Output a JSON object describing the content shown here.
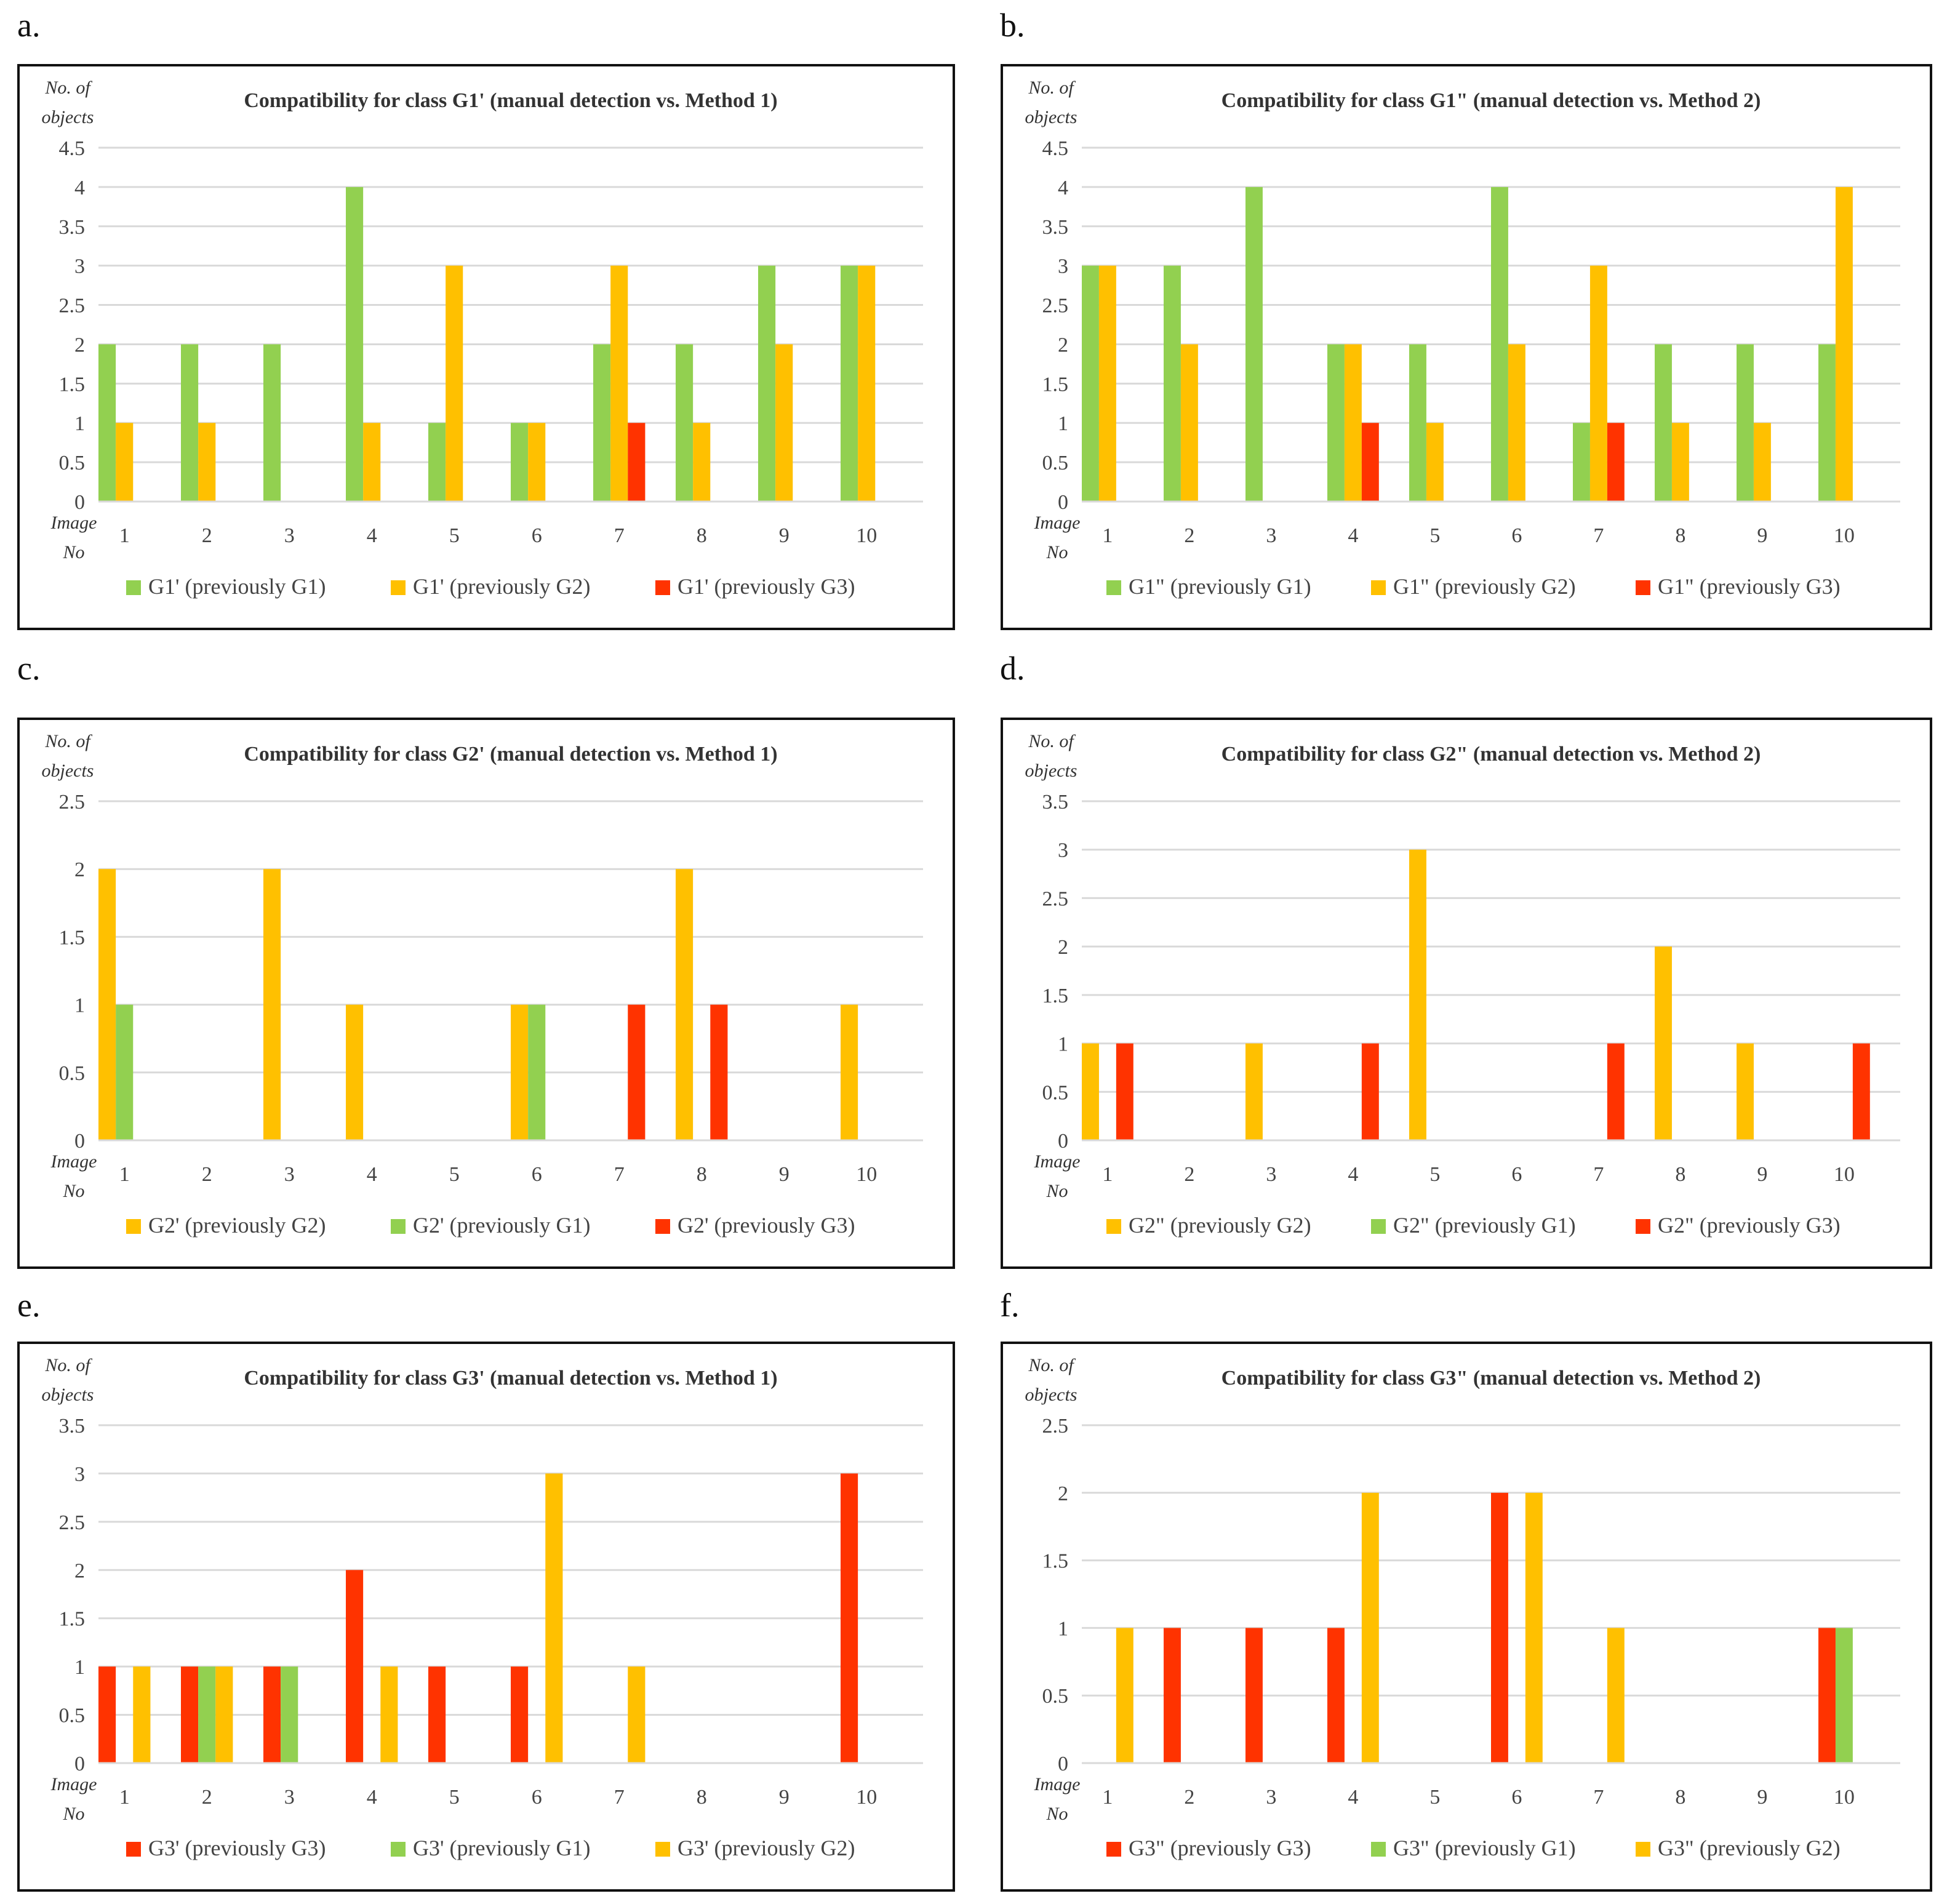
{
  "colors": {
    "green": "#92D050",
    "orange": "#FFC000",
    "red": "#FF3300",
    "grid": "#D9D9D9"
  },
  "axis_labels": {
    "y_line1": "No. of",
    "y_line2": "objects",
    "x_line1": "Image",
    "x_line2": "No"
  },
  "chart_data": [
    {
      "panel": "a.",
      "type": "bar",
      "title": "Compatibility for class G1' (manual detection vs. Method 1)",
      "ylabel": "No. of objects",
      "xlabel": "Image No",
      "ylim": [
        0,
        4.5
      ],
      "ystep": 0.5,
      "yticks": [
        "0",
        "0.5",
        "1",
        "1.5",
        "2",
        "2.5",
        "3",
        "3.5",
        "4",
        "4.5"
      ],
      "categories": [
        "1",
        "2",
        "3",
        "4",
        "5",
        "6",
        "7",
        "8",
        "9",
        "10"
      ],
      "legend_position": "bottom",
      "series": [
        {
          "name": "G1' (previously G1)",
          "color": "green",
          "values": [
            2,
            2,
            2,
            4,
            1,
            1,
            2,
            2,
            3,
            3
          ]
        },
        {
          "name": "G1' (previously G2)",
          "color": "orange",
          "values": [
            1,
            1,
            0,
            1,
            3,
            1,
            3,
            1,
            2,
            3
          ]
        },
        {
          "name": "G1' (previously G3)",
          "color": "red",
          "values": [
            0,
            0,
            0,
            0,
            0,
            0,
            1,
            0,
            0,
            0
          ]
        }
      ]
    },
    {
      "panel": "b.",
      "type": "bar",
      "title": "Compatibility for class G1\" (manual detection vs. Method 2)",
      "ylabel": "No. of objects",
      "xlabel": "Image No",
      "ylim": [
        0,
        4.5
      ],
      "ystep": 0.5,
      "yticks": [
        "0",
        "0.5",
        "1",
        "1.5",
        "2",
        "2.5",
        "3",
        "3.5",
        "4",
        "4.5"
      ],
      "categories": [
        "1",
        "2",
        "3",
        "4",
        "5",
        "6",
        "7",
        "8",
        "9",
        "10"
      ],
      "legend_position": "bottom",
      "series": [
        {
          "name": "G1\" (previously G1)",
          "color": "green",
          "values": [
            3,
            3,
            4,
            2,
            2,
            4,
            1,
            2,
            2,
            2
          ]
        },
        {
          "name": "G1\" (previously G2)",
          "color": "orange",
          "values": [
            3,
            2,
            0,
            2,
            1,
            2,
            3,
            1,
            1,
            4
          ]
        },
        {
          "name": "G1\" (previously G3)",
          "color": "red",
          "values": [
            0,
            0,
            0,
            1,
            0,
            0,
            1,
            0,
            0,
            0
          ]
        }
      ]
    },
    {
      "panel": "c.",
      "type": "bar",
      "title": "Compatibility for class G2' (manual detection vs. Method 1)",
      "ylabel": "No. of objects",
      "xlabel": "Image No",
      "ylim": [
        0,
        2.5
      ],
      "ystep": 0.5,
      "yticks": [
        "0",
        "0.5",
        "1",
        "1.5",
        "2",
        "2.5"
      ],
      "categories": [
        "1",
        "2",
        "3",
        "4",
        "5",
        "6",
        "7",
        "8",
        "9",
        "10"
      ],
      "legend_position": "bottom",
      "series": [
        {
          "name": "G2' (previously G2)",
          "color": "orange",
          "values": [
            2,
            0,
            2,
            1,
            0,
            1,
            0,
            2,
            0,
            1
          ]
        },
        {
          "name": "G2' (previously G1)",
          "color": "green",
          "values": [
            1,
            0,
            0,
            0,
            0,
            1,
            0,
            0,
            0,
            0
          ]
        },
        {
          "name": "G2' (previously G3)",
          "color": "red",
          "values": [
            0,
            0,
            0,
            0,
            0,
            0,
            1,
            1,
            0,
            0
          ]
        }
      ],
      "bar_slots": [
        0,
        1,
        2
      ]
    },
    {
      "panel": "d.",
      "type": "bar",
      "title": "Compatibility for class G2\" (manual detection vs. Method 2)",
      "ylabel": "No. of objects",
      "xlabel": "Image No",
      "ylim": [
        0,
        3.5
      ],
      "ystep": 0.5,
      "yticks": [
        "0",
        "0.5",
        "1",
        "1.5",
        "2",
        "2.5",
        "3",
        "3.5"
      ],
      "categories": [
        "1",
        "2",
        "3",
        "4",
        "5",
        "6",
        "7",
        "8",
        "9",
        "10"
      ],
      "legend_position": "bottom",
      "series": [
        {
          "name": "G2\" (previously G2)",
          "color": "orange",
          "values": [
            1,
            0,
            1,
            0,
            3,
            0,
            0,
            2,
            1,
            0
          ]
        },
        {
          "name": "G2\" (previously G1)",
          "color": "green",
          "values": [
            0,
            0,
            0,
            0,
            0,
            0,
            0,
            0,
            0,
            0
          ]
        },
        {
          "name": "G2\" (previously G3)",
          "color": "red",
          "values": [
            1,
            0,
            0,
            1,
            0,
            0,
            1,
            0,
            0,
            1
          ]
        }
      ]
    },
    {
      "panel": "e.",
      "type": "bar",
      "title": "Compatibility for class G3' (manual detection vs. Method 1)",
      "ylabel": "No. of objects",
      "xlabel": "Image No",
      "ylim": [
        0,
        3.5
      ],
      "ystep": 0.5,
      "yticks": [
        "0",
        "0.5",
        "1",
        "1.5",
        "2",
        "2.5",
        "3",
        "3.5"
      ],
      "categories": [
        "1",
        "2",
        "3",
        "4",
        "5",
        "6",
        "7",
        "8",
        "9",
        "10"
      ],
      "legend_position": "bottom",
      "series": [
        {
          "name": "G3' (previously G3)",
          "color": "red",
          "values": [
            1,
            1,
            1,
            2,
            1,
            1,
            0,
            0,
            0,
            3
          ]
        },
        {
          "name": "G3' (previously G1)",
          "color": "green",
          "values": [
            0,
            1,
            1,
            0,
            0,
            0,
            0,
            0,
            0,
            0
          ]
        },
        {
          "name": "G3' (previously G2)",
          "color": "orange",
          "values": [
            1,
            1,
            0,
            1,
            0,
            3,
            1,
            0,
            0,
            0
          ]
        }
      ]
    },
    {
      "panel": "f.",
      "type": "bar",
      "title": "Compatibility for class G3\" (manual detection vs. Method 2)",
      "ylabel": "No. of objects",
      "xlabel": "Image No",
      "ylim": [
        0,
        2.5
      ],
      "ystep": 0.5,
      "yticks": [
        "0",
        "0.5",
        "1",
        "1.5",
        "2",
        "2.5"
      ],
      "categories": [
        "1",
        "2",
        "3",
        "4",
        "5",
        "6",
        "7",
        "8",
        "9",
        "10"
      ],
      "legend_position": "bottom",
      "series": [
        {
          "name": "G3\" (previously G3)",
          "color": "red",
          "values": [
            0,
            1,
            1,
            1,
            0,
            2,
            0,
            0,
            0,
            1
          ]
        },
        {
          "name": "G3\" (previously G1)",
          "color": "green",
          "values": [
            0,
            0,
            0,
            0,
            0,
            0,
            0,
            0,
            0,
            1
          ]
        },
        {
          "name": "G3\" (previously G2)",
          "color": "orange",
          "values": [
            1,
            0,
            0,
            2,
            0,
            2,
            1,
            0,
            0,
            0
          ]
        }
      ]
    }
  ]
}
